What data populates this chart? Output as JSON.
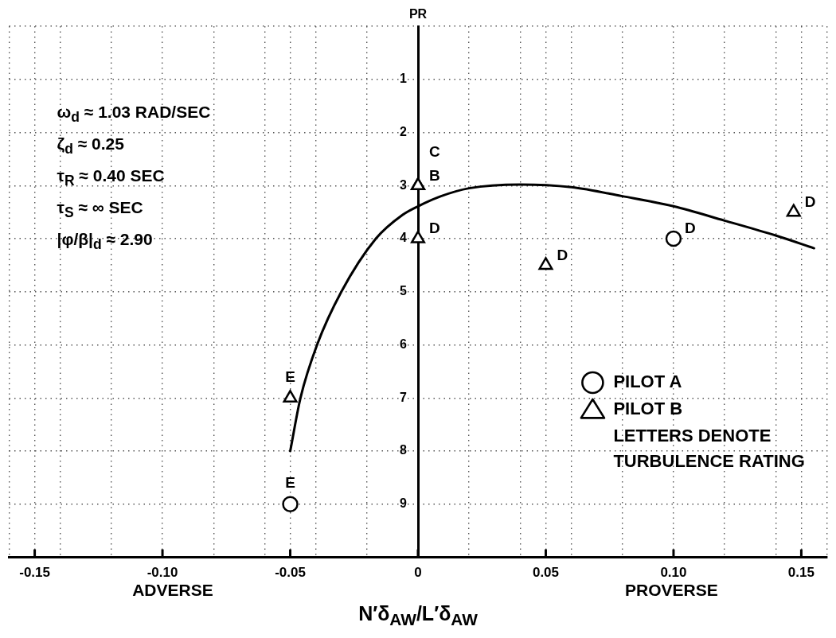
{
  "chart_data": {
    "type": "scatter",
    "xlabel": "N′δ$_{AW}$/L′δ$_{AW}$",
    "ylabel": "PR",
    "annotations": [
      "ω$_{d}$ ≈ 1.03 RAD/SEC",
      "ζ$_{d}$ ≈ 0.25",
      "τ$_{R}$ ≈ 0.40 SEC",
      "τ$_{S}$ ≈ ∞ SEC",
      "|φ/β|$_{d}$ ≈ 2.90",
      "LETTERS DENOTE TURBULENCE RATING",
      "ADVERSE",
      "PROVERSE"
    ],
    "xlim": [
      -0.16,
      0.16
    ],
    "xticks": [
      {
        "value": -0.16,
        "label": null
      },
      -0.15,
      {
        "value": -0.14,
        "label": null
      },
      {
        "value": -0.12,
        "label": null
      },
      {
        "value": -0.1,
        "label": "-0.10"
      },
      {
        "value": -0.08,
        "label": null
      },
      {
        "value": -0.06,
        "label": null
      },
      -0.05,
      {
        "value": -0.04,
        "label": null
      },
      {
        "value": -0.02,
        "label": null
      },
      0,
      {
        "value": 0.02,
        "label": null
      },
      {
        "value": 0.04,
        "label": null
      },
      0.05,
      {
        "value": 0.06,
        "label": null
      },
      {
        "value": 0.08,
        "label": null
      },
      {
        "value": 0.1,
        "label": "0.10"
      },
      {
        "value": 0.12,
        "label": null
      },
      {
        "value": 0.14,
        "label": null
      },
      0.15,
      {
        "value": 0.16,
        "label": null
      }
    ],
    "ylim": [
      10,
      0
    ],
    "yticks": [
      {
        "value": 0,
        "label": null
      },
      1,
      2,
      3,
      4,
      5,
      6,
      7,
      8,
      9,
      {
        "value": 10,
        "label": null
      }
    ],
    "grid": true,
    "legend": "bottom right",
    "series": [
      {
        "name": "PILOT A",
        "marker": "circle",
        "color": "#000000",
        "x": [
          0.1,
          -0.05
        ],
        "values": [
          4,
          9
        ],
        "value_labels": [
          "D",
          "E"
        ]
      },
      {
        "name": "PILOT B",
        "marker": "triangle",
        "color": "#000000",
        "x": [
          0,
          0,
          0,
          0.05,
          0.147,
          -0.05
        ],
        "values": [
          3,
          3,
          4,
          4.5,
          3.5,
          7
        ],
        "value_labels": [
          "B",
          "C",
          "D",
          "D",
          "D",
          "E"
        ]
      },
      {
        "type": "line",
        "marker": "none",
        "line_style": "solid",
        "color": "#000000",
        "x": [
          -0.05,
          -0.046,
          -0.0395,
          -0.03,
          -0.0165,
          -0.006,
          0,
          0.009,
          0.02,
          0.04,
          0.06,
          0.08,
          0.1,
          0.12,
          0.14,
          0.155
        ],
        "values": [
          8,
          7,
          6,
          5,
          4,
          3.55,
          3.39,
          3.2,
          3.05,
          2.98,
          3.03,
          3.2,
          3.39,
          3.66,
          3.94,
          4.18
        ]
      }
    ]
  }
}
